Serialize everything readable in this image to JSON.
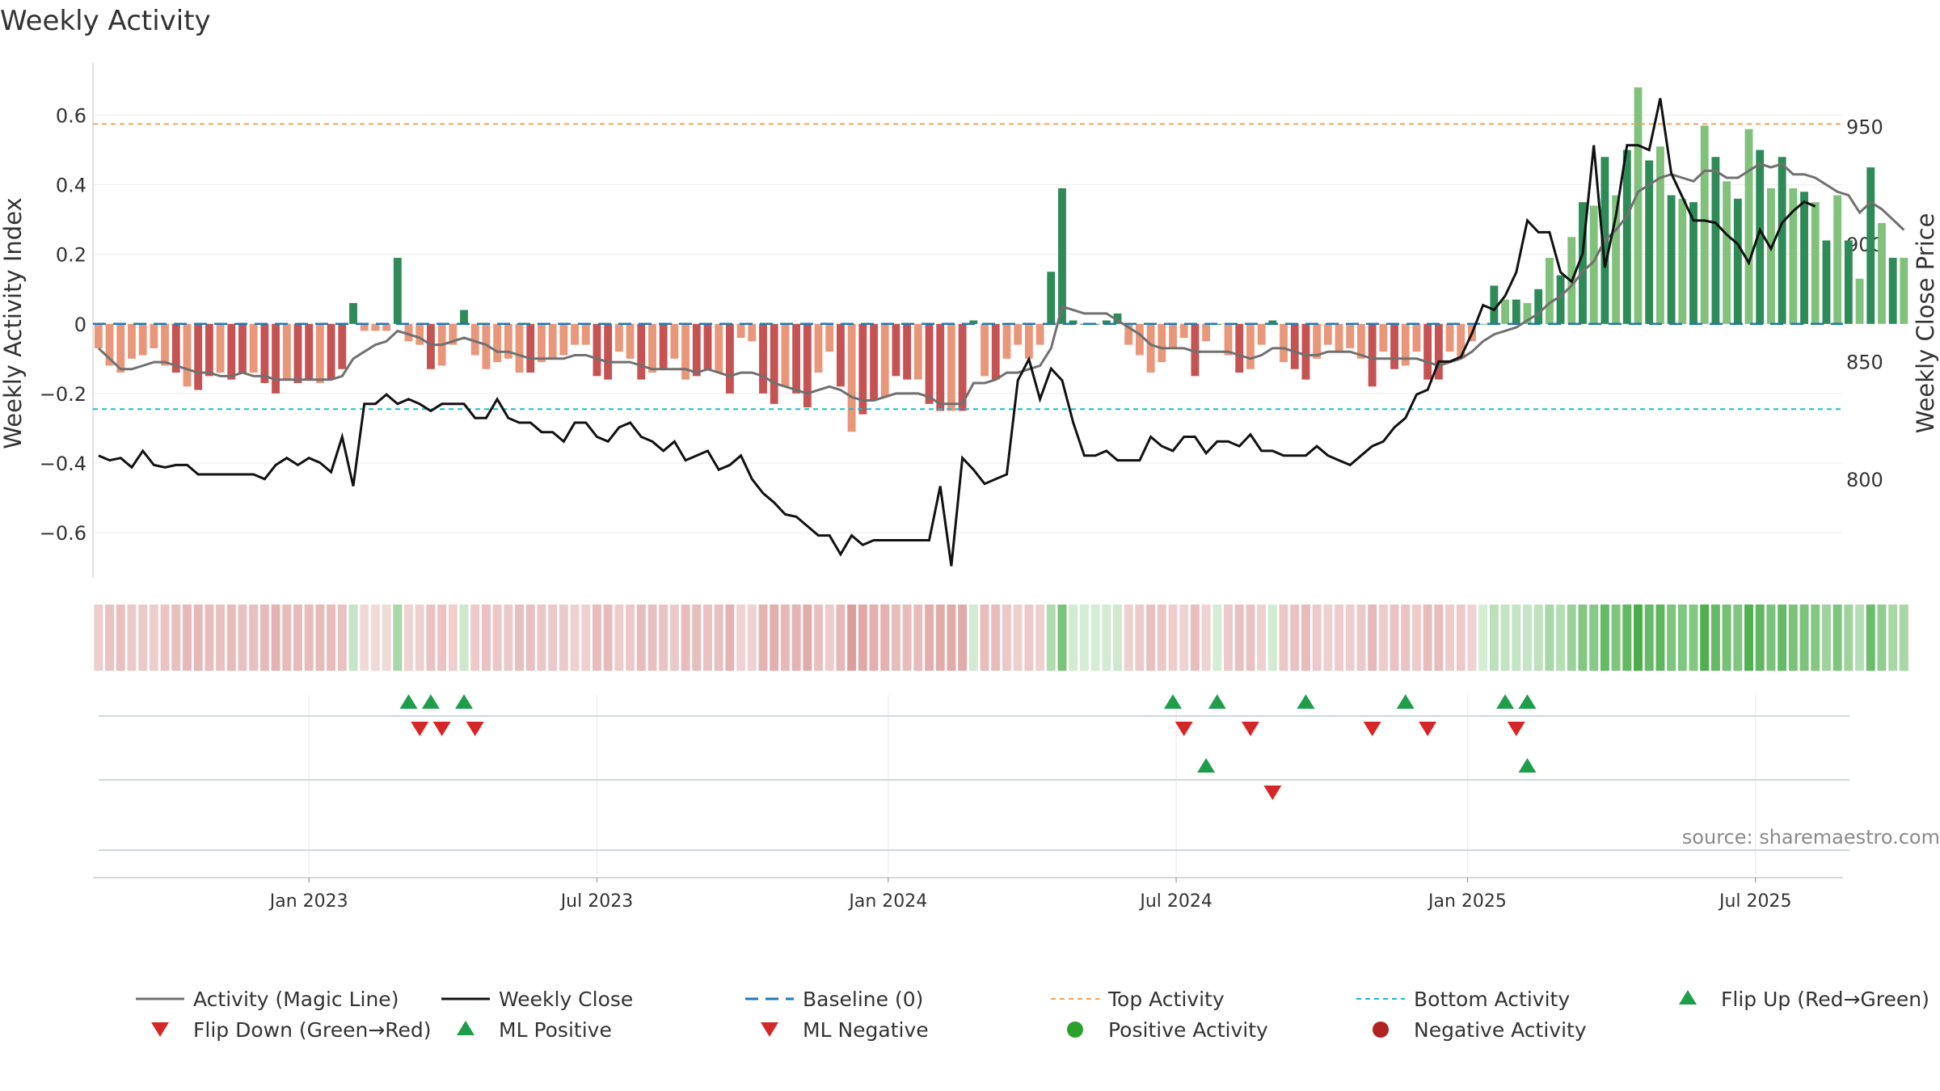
{
  "title": "Weekly Activity",
  "source": "source: sharemaestro.com",
  "colors": {
    "neg_strong": "#c65353",
    "neg_weak": "#e8977a",
    "pos_strong": "#2e8b57",
    "pos_weak": "#82c17c",
    "magic_line": "#707070",
    "close_line": "#111111",
    "baseline": "#1f77b4",
    "top_line": "#f2a35e",
    "bottom_line": "#17becf",
    "marker_up": "#1e9e4a",
    "marker_down": "#d62728",
    "dot_pos": "#2ca02c",
    "dot_neg": "#b22222"
  },
  "chart_data": {
    "type": "bar",
    "title": "Weekly Activity",
    "ylabel": "Weekly Activity Index",
    "y2label": "Weekly Close Price",
    "ylim": [
      -0.73,
      0.75
    ],
    "y2lim": [
      758,
      977
    ],
    "yticks": [
      -0.6,
      -0.4,
      -0.2,
      0,
      0.2,
      0.4,
      0.6
    ],
    "ytick_labels": [
      "−0.6",
      "−0.4",
      "−0.2",
      "0",
      "0.2",
      "0.4",
      "0.6"
    ],
    "y2ticks": [
      800,
      850,
      900,
      950
    ],
    "y2tick_labels": [
      "800",
      "850",
      "900",
      "950"
    ],
    "xlim_weeks": [
      -19.5,
      138.5
    ],
    "x_ticks": [
      {
        "label": "Jan 2023",
        "week": 0
      },
      {
        "label": "Jul 2023",
        "week": 26
      },
      {
        "label": "Jan 2024",
        "week": 52.3
      },
      {
        "label": "Jul 2024",
        "week": 78.3
      },
      {
        "label": "Jan 2025",
        "week": 104.6
      },
      {
        "label": "Jul 2025",
        "week": 130.6
      }
    ],
    "top_activity": 0.575,
    "bottom_activity": -0.245,
    "activity": [
      -0.07,
      -0.12,
      -0.14,
      -0.1,
      -0.09,
      -0.07,
      -0.12,
      -0.14,
      -0.18,
      -0.19,
      -0.15,
      -0.14,
      -0.16,
      -0.14,
      -0.14,
      -0.17,
      -0.2,
      -0.16,
      -0.17,
      -0.16,
      -0.17,
      -0.16,
      -0.13,
      0.06,
      -0.02,
      -0.02,
      -0.02,
      0.19,
      -0.05,
      -0.06,
      -0.13,
      -0.12,
      -0.06,
      0.04,
      -0.09,
      -0.13,
      -0.11,
      -0.1,
      -0.14,
      -0.14,
      -0.11,
      -0.1,
      -0.09,
      -0.06,
      -0.06,
      -0.15,
      -0.16,
      -0.08,
      -0.1,
      -0.16,
      -0.14,
      -0.13,
      -0.1,
      -0.16,
      -0.15,
      -0.13,
      -0.14,
      -0.2,
      -0.04,
      -0.05,
      -0.2,
      -0.23,
      -0.18,
      -0.2,
      -0.24,
      -0.14,
      -0.08,
      -0.18,
      -0.31,
      -0.26,
      -0.22,
      -0.21,
      -0.15,
      -0.16,
      -0.16,
      -0.23,
      -0.25,
      -0.25,
      -0.25,
      0.01,
      -0.15,
      -0.16,
      -0.1,
      -0.06,
      -0.1,
      -0.06,
      0.15,
      0.39,
      0.01,
      0.0,
      0.0,
      0.01,
      0.03,
      -0.06,
      -0.09,
      -0.14,
      -0.11,
      -0.07,
      -0.04,
      -0.15,
      -0.05,
      0.0,
      -0.09,
      -0.14,
      -0.13,
      -0.06,
      0.01,
      -0.11,
      -0.13,
      -0.16,
      -0.1,
      -0.06,
      -0.08,
      -0.07,
      -0.1,
      -0.18,
      -0.08,
      -0.13,
      -0.12,
      -0.08,
      -0.16,
      -0.16,
      -0.08,
      -0.1,
      -0.05,
      0.0,
      0.11,
      0.07,
      0.07,
      0.06,
      0.1,
      0.19,
      0.14,
      0.25,
      0.35,
      0.34,
      0.48,
      0.37,
      0.5,
      0.68,
      0.47,
      0.51,
      0.37,
      0.36,
      0.35,
      0.57,
      0.48,
      0.41,
      0.36,
      0.56,
      0.5,
      0.39,
      0.48,
      0.39,
      0.38,
      0.35,
      0.24,
      0.37,
      0.24,
      0.13,
      0.45,
      0.29,
      0.19,
      0.19
    ],
    "magic_line": [
      -0.07,
      -0.1,
      -0.13,
      -0.13,
      -0.12,
      -0.11,
      -0.11,
      -0.12,
      -0.13,
      -0.14,
      -0.14,
      -0.15,
      -0.15,
      -0.14,
      -0.15,
      -0.15,
      -0.16,
      -0.16,
      -0.16,
      -0.16,
      -0.16,
      -0.16,
      -0.15,
      -0.1,
      -0.08,
      -0.06,
      -0.05,
      -0.02,
      -0.03,
      -0.04,
      -0.06,
      -0.06,
      -0.05,
      -0.04,
      -0.05,
      -0.06,
      -0.08,
      -0.08,
      -0.09,
      -0.1,
      -0.1,
      -0.1,
      -0.1,
      -0.09,
      -0.09,
      -0.1,
      -0.11,
      -0.11,
      -0.11,
      -0.12,
      -0.13,
      -0.13,
      -0.13,
      -0.13,
      -0.14,
      -0.13,
      -0.14,
      -0.15,
      -0.14,
      -0.14,
      -0.15,
      -0.17,
      -0.18,
      -0.19,
      -0.2,
      -0.19,
      -0.18,
      -0.19,
      -0.21,
      -0.22,
      -0.22,
      -0.21,
      -0.2,
      -0.2,
      -0.2,
      -0.21,
      -0.23,
      -0.23,
      -0.23,
      -0.17,
      -0.17,
      -0.16,
      -0.14,
      -0.14,
      -0.13,
      -0.12,
      -0.07,
      0.05,
      0.04,
      0.03,
      0.03,
      0.03,
      0.01,
      -0.01,
      -0.03,
      -0.06,
      -0.07,
      -0.07,
      -0.07,
      -0.08,
      -0.08,
      -0.08,
      -0.08,
      -0.09,
      -0.1,
      -0.09,
      -0.07,
      -0.07,
      -0.08,
      -0.09,
      -0.09,
      -0.08,
      -0.08,
      -0.08,
      -0.09,
      -0.1,
      -0.1,
      -0.1,
      -0.1,
      -0.1,
      -0.11,
      -0.12,
      -0.11,
      -0.1,
      -0.08,
      -0.05,
      -0.03,
      -0.02,
      -0.01,
      0.01,
      0.03,
      0.06,
      0.08,
      0.11,
      0.15,
      0.18,
      0.24,
      0.27,
      0.31,
      0.38,
      0.4,
      0.42,
      0.43,
      0.42,
      0.41,
      0.44,
      0.44,
      0.42,
      0.42,
      0.44,
      0.46,
      0.45,
      0.46,
      0.43,
      0.43,
      0.42,
      0.4,
      0.38,
      0.37,
      0.32,
      0.35,
      0.33,
      0.3,
      0.27
    ],
    "weekly_close": [
      810,
      808,
      809,
      805,
      812,
      806,
      805,
      806,
      806,
      802,
      802,
      802,
      802,
      802,
      802,
      800,
      806,
      809,
      806,
      809,
      807,
      803,
      818,
      797,
      832,
      832,
      836,
      832,
      834,
      832,
      829,
      832,
      832,
      832,
      826,
      826,
      834,
      826,
      824,
      824,
      820,
      820,
      816,
      824,
      824,
      818,
      816,
      822,
      824,
      818,
      816,
      812,
      816,
      808,
      810,
      812,
      804,
      806,
      810,
      800,
      794,
      790,
      785,
      784,
      780,
      776,
      776,
      768,
      776,
      772,
      774,
      774,
      774,
      774,
      774,
      774,
      797,
      763,
      809,
      804,
      798,
      800,
      802,
      842,
      851,
      834,
      847,
      842,
      824,
      810,
      810,
      812,
      808,
      808,
      808,
      818,
      814,
      812,
      818,
      818,
      811,
      816,
      816,
      814,
      819,
      812,
      812,
      810,
      810,
      810,
      814,
      810,
      808,
      806,
      810,
      814,
      816,
      822,
      826,
      836,
      838,
      850,
      850,
      852,
      862,
      874,
      872,
      878,
      888,
      910,
      905,
      905,
      888,
      884,
      896,
      942,
      890,
      912,
      942,
      942,
      940,
      962,
      930,
      920,
      910,
      910,
      909,
      904,
      900,
      892,
      906,
      898,
      909,
      914,
      918,
      916
    ],
    "flip_up": [
      9,
      11,
      14,
      78,
      82,
      90,
      99,
      108,
      110
    ],
    "flip_down": [
      10,
      12,
      15,
      79,
      85,
      96,
      101,
      109
    ],
    "ml_positive": [
      81,
      110
    ],
    "ml_negative": [
      87
    ]
  },
  "legend": {
    "row1": [
      "Activity (Magic Line)",
      "Weekly Close",
      "Baseline (0)",
      "Top Activity",
      "Bottom Activity",
      "Flip Up (Red→Green)"
    ],
    "row2": [
      "Flip Down (Green→Red)",
      "ML Positive",
      "ML Negative",
      "Positive Activity",
      "Negative Activity"
    ]
  }
}
